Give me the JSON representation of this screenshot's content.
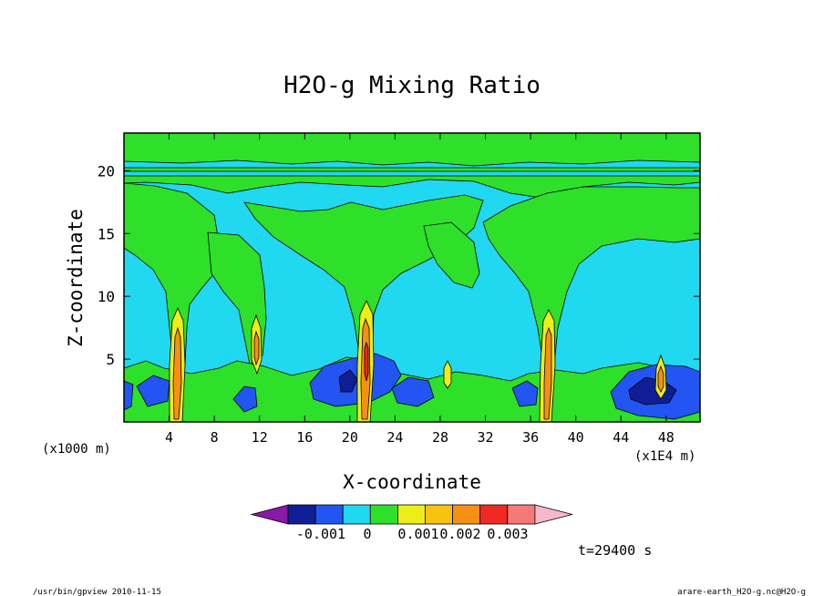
{
  "chart_data": {
    "type": "heatmap",
    "title": "H2O-g Mixing Ratio",
    "xlabel": "X-coordinate",
    "ylabel": "Z-coordinate",
    "x_unit_left": "(x1000 m)",
    "x_unit_right": "(x1E4 m)",
    "xlim": [
      0,
      51
    ],
    "ylim": [
      0,
      23
    ],
    "x_ticks": [
      "4",
      "8",
      "12",
      "16",
      "20",
      "24",
      "28",
      "32",
      "36",
      "40",
      "44",
      "48"
    ],
    "y_ticks": [
      "5",
      "10",
      "15",
      "20"
    ],
    "x_tick_values": [
      4,
      8,
      12,
      16,
      20,
      24,
      28,
      32,
      36,
      40,
      44,
      48
    ],
    "y_tick_values": [
      5,
      10,
      15,
      20
    ],
    "colorbar": {
      "labels": [
        "-0.001",
        "0",
        "0.001",
        "0.002",
        "0.003"
      ],
      "colors": [
        "#8a18a8",
        "#101e96",
        "#2255f2",
        "#20d8f0",
        "#2ee02a",
        "#eded18",
        "#f7c311",
        "#f49114",
        "#ef2a22",
        "#f77878",
        "#f5b9cb"
      ]
    },
    "background_color": "#20d8f0",
    "layers": {
      "green": "#2ee02a",
      "blue": "#2255f2",
      "navy": "#101e96",
      "yellow": "#eded18",
      "orange": "#f49114",
      "red": "#ef2a22"
    },
    "plumes_x": [
      4.9,
      11.8,
      21.3,
      37.8,
      47.2
    ],
    "blue_cells": [
      {
        "x": 44,
        "z": 1.5
      },
      {
        "x": 47.5,
        "z": 2.6
      },
      {
        "x": 20,
        "z": 2.3
      },
      {
        "x": 24,
        "z": 2.2
      },
      {
        "x": 12,
        "z": 1.5
      }
    ]
  },
  "time_label": "t=29400 s",
  "footer_left": "/usr/bin/gpview  2010-11-15",
  "footer_right": "arare-earth_H2O-g.nc@H2O-g"
}
